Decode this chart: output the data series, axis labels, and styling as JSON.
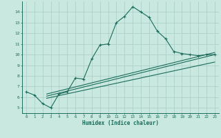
{
  "xlabel": "Humidex (Indice chaleur)",
  "ylabel": "",
  "bg_color": "#c8e8e0",
  "grid_color": "#a8ccc4",
  "line_color": "#1a6b5a",
  "xlim": [
    -0.5,
    23.5
  ],
  "ylim": [
    4.5,
    15.0
  ],
  "xticks": [
    0,
    1,
    2,
    3,
    4,
    5,
    6,
    7,
    8,
    9,
    10,
    11,
    12,
    13,
    14,
    15,
    16,
    17,
    18,
    19,
    20,
    21,
    22,
    23
  ],
  "yticks": [
    5,
    6,
    7,
    8,
    9,
    10,
    11,
    12,
    13,
    14
  ],
  "curve1_x": [
    0,
    1,
    2,
    3,
    4,
    5,
    6,
    7,
    8,
    9,
    10,
    11,
    12,
    13,
    14,
    15,
    16,
    17,
    18,
    19,
    20,
    21,
    22,
    23
  ],
  "curve1_y": [
    6.5,
    6.2,
    5.4,
    5.0,
    6.3,
    6.5,
    7.8,
    7.7,
    9.6,
    10.9,
    11.0,
    13.0,
    13.6,
    14.5,
    14.0,
    13.5,
    12.2,
    11.5,
    10.3,
    10.1,
    10.0,
    9.9,
    10.0,
    10.0
  ],
  "line1_x": [
    2.5,
    23
  ],
  "line1_y": [
    6.1,
    10.0
  ],
  "line2_x": [
    2.5,
    23
  ],
  "line2_y": [
    6.3,
    10.2
  ],
  "line3_x": [
    2.5,
    23
  ],
  "line3_y": [
    5.9,
    9.3
  ]
}
